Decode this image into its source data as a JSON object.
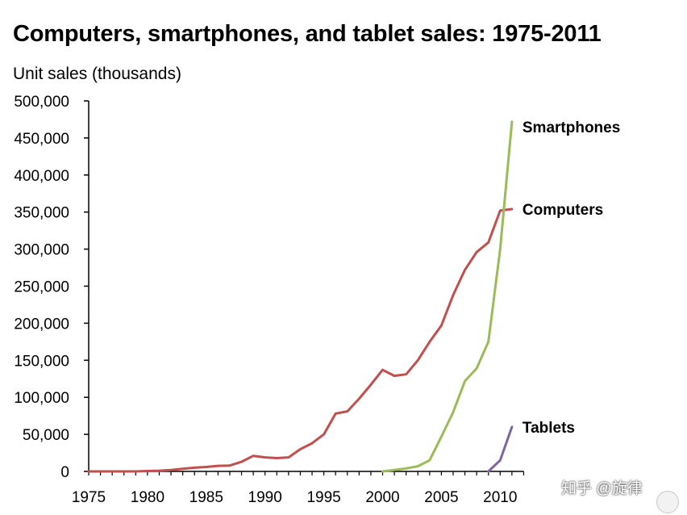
{
  "chart_data": {
    "type": "line",
    "title": "Computers, smartphones, and tablet sales: 1975-2011",
    "ylabel": "Unit sales (thousands)",
    "xlim": [
      1975,
      2012
    ],
    "ylim": [
      0,
      500000
    ],
    "x_ticks": [
      1975,
      1980,
      1985,
      1990,
      1995,
      2000,
      2005,
      2010
    ],
    "y_ticks": [
      0,
      50000,
      100000,
      150000,
      200000,
      250000,
      300000,
      350000,
      400000,
      450000,
      500000
    ],
    "y_tick_labels": [
      "0",
      "50,000",
      "100,000",
      "150,000",
      "200,000",
      "250,000",
      "300,000",
      "350,000",
      "400,000",
      "450,000",
      "500,000"
    ],
    "grid": false,
    "legend": "labels at line ends (right)",
    "series": [
      {
        "name": "Computers",
        "color": "#c0504d",
        "x": [
          1975,
          1976,
          1977,
          1978,
          1979,
          1980,
          1981,
          1982,
          1983,
          1984,
          1985,
          1986,
          1987,
          1988,
          1989,
          1990,
          1991,
          1992,
          1993,
          1994,
          1995,
          1996,
          1997,
          1998,
          1999,
          2000,
          2001,
          2002,
          2003,
          2004,
          2005,
          2006,
          2007,
          2008,
          2009,
          2010,
          2011
        ],
        "values": [
          0,
          0,
          0,
          0,
          0,
          500,
          1000,
          2000,
          3500,
          5000,
          6000,
          7500,
          8000,
          13000,
          21000,
          19000,
          18000,
          19000,
          30000,
          38000,
          50000,
          78000,
          81000,
          98000,
          117000,
          137000,
          129000,
          131000,
          150000,
          175000,
          197000,
          238000,
          272000,
          296000,
          309000,
          352000,
          354000
        ]
      },
      {
        "name": "Smartphones",
        "color": "#9bbb59",
        "x": [
          2000,
          2001,
          2002,
          2003,
          2004,
          2005,
          2006,
          2007,
          2008,
          2009,
          2010,
          2011
        ],
        "values": [
          0,
          2000,
          4000,
          7000,
          15000,
          47000,
          80000,
          122000,
          139000,
          175000,
          300000,
          472000
        ]
      },
      {
        "name": "Tablets",
        "color": "#8064a2",
        "x": [
          2009,
          2010,
          2011
        ],
        "values": [
          0,
          15000,
          60000
        ]
      }
    ]
  },
  "watermark": "知乎 @旋律"
}
